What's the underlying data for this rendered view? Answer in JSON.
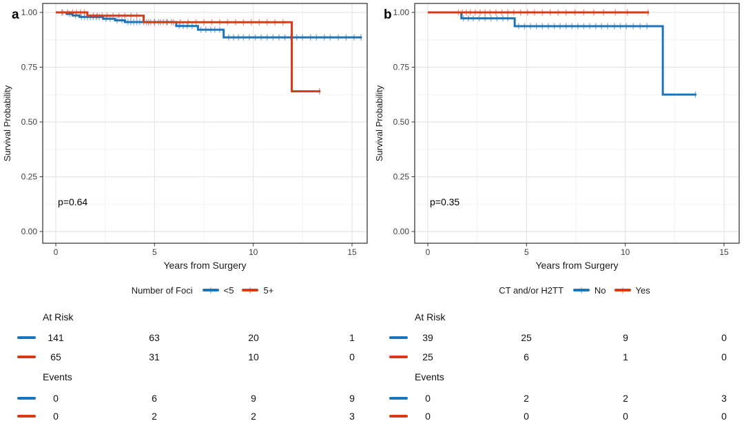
{
  "colors": {
    "blue": "#1F74B8",
    "red": "#D93A16",
    "grid_major": "#E4E4E4",
    "grid_minor": "#F2F2F2",
    "panel_border": "#3A3A3A",
    "tick_text": "#404040"
  },
  "chart_data": [
    {
      "type": "line",
      "subtype": "kaplan-meier-step",
      "panel_label": "a",
      "xlabel": "Years from Surgery",
      "ylabel": "Survival Probability",
      "xticks": [
        0,
        5,
        10,
        15
      ],
      "x_minor": [
        2.5,
        7.5,
        12.5
      ],
      "yticks": [
        0.0,
        0.25,
        0.5,
        0.75,
        1.0
      ],
      "ytick_labels": [
        "0.00",
        "0.25",
        "0.50",
        "0.75",
        "1.00"
      ],
      "y_minor": [
        0.125,
        0.375,
        0.625,
        0.875
      ],
      "xlim": [
        -0.65,
        15.8
      ],
      "ylim": [
        -0.055,
        1.04
      ],
      "grid": true,
      "legend_position": "bottom",
      "p_value": "p=0.64",
      "legend": {
        "title": "Number of Foci",
        "entries": [
          {
            "label": "<5",
            "color": "#1F74B8"
          },
          {
            "label": "5+",
            "color": "#D93A16"
          }
        ]
      },
      "series": [
        {
          "name": "<5",
          "color": "#1F74B8",
          "steps": [
            [
              0,
              1.0
            ],
            [
              0.55,
              0.993
            ],
            [
              0.85,
              0.986
            ],
            [
              1.2,
              0.979
            ],
            [
              2.4,
              0.971
            ],
            [
              3.0,
              0.964
            ],
            [
              3.5,
              0.956
            ],
            [
              6.1,
              0.938
            ],
            [
              7.2,
              0.921
            ],
            [
              8.5,
              0.886
            ]
          ],
          "end_x": 15.5,
          "censors": [
            0.3,
            0.7,
            1.0,
            1.3,
            1.45,
            1.6,
            1.75,
            1.9,
            2.05,
            2.2,
            2.55,
            2.75,
            3.1,
            3.35,
            3.65,
            3.8,
            3.95,
            4.1,
            4.25,
            4.45,
            4.6,
            4.8,
            5.0,
            5.2,
            5.45,
            5.65,
            5.85,
            6.25,
            6.45,
            6.65,
            6.9,
            7.35,
            7.6,
            7.85,
            8.05,
            8.3,
            8.75,
            9.0,
            9.25,
            9.5,
            9.8,
            10.1,
            10.4,
            10.7,
            11.0,
            11.3,
            11.6,
            11.9,
            12.2,
            12.5,
            12.9,
            13.2,
            13.6,
            13.9,
            14.3,
            14.7,
            15.1,
            15.45
          ]
        },
        {
          "name": "5+",
          "color": "#D93A16",
          "steps": [
            [
              0,
              1.0
            ],
            [
              1.6,
              0.985
            ],
            [
              4.45,
              0.955
            ],
            [
              11.95,
              0.64
            ]
          ],
          "end_x": 13.4,
          "censors": [
            0.35,
            0.6,
            0.85,
            1.05,
            1.25,
            1.45,
            1.9,
            2.1,
            2.35,
            2.6,
            2.9,
            3.2,
            3.5,
            3.8,
            4.1,
            4.7,
            5.0,
            5.3,
            5.6,
            5.95,
            6.3,
            6.7,
            7.1,
            7.5,
            7.9,
            8.3,
            8.7,
            9.1,
            9.5,
            9.9,
            10.3,
            10.7,
            11.1,
            11.5,
            13.35
          ]
        }
      ],
      "risk_table": {
        "columns": [
          0,
          5,
          10,
          15
        ],
        "sections": [
          {
            "label": "At Risk",
            "rows": [
              {
                "group": "<5",
                "color": "#1F74B8",
                "values": [
                  "141",
                  "63",
                  "20",
                  "1"
                ]
              },
              {
                "group": "5+",
                "color": "#D93A16",
                "values": [
                  "65",
                  "31",
                  "10",
                  "0"
                ]
              }
            ]
          },
          {
            "label": "Events",
            "rows": [
              {
                "group": "<5",
                "color": "#1F74B8",
                "values": [
                  "0",
                  "6",
                  "9",
                  "9"
                ]
              },
              {
                "group": "5+",
                "color": "#D93A16",
                "values": [
                  "0",
                  "2",
                  "2",
                  "3"
                ]
              }
            ]
          }
        ]
      }
    },
    {
      "type": "line",
      "subtype": "kaplan-meier-step",
      "panel_label": "b",
      "xlabel": "Years from Surgery",
      "ylabel": "Survival Probability",
      "xticks": [
        0,
        5,
        10,
        15
      ],
      "x_minor": [
        2.5,
        7.5,
        12.5
      ],
      "yticks": [
        0.0,
        0.25,
        0.5,
        0.75,
        1.0
      ],
      "ytick_labels": [
        "0.00",
        "0.25",
        "0.50",
        "0.75",
        "1.00"
      ],
      "y_minor": [
        0.125,
        0.375,
        0.625,
        0.875
      ],
      "xlim": [
        -0.65,
        15.8
      ],
      "ylim": [
        -0.055,
        1.04
      ],
      "grid": true,
      "legend_position": "bottom",
      "p_value": "p=0.35",
      "legend": {
        "title": "CT and/or H2TT",
        "entries": [
          {
            "label": "No",
            "color": "#1F74B8"
          },
          {
            "label": "Yes",
            "color": "#D93A16"
          }
        ]
      },
      "series": [
        {
          "name": "No",
          "color": "#1F74B8",
          "steps": [
            [
              0,
              1.0
            ],
            [
              1.7,
              0.973
            ],
            [
              4.4,
              0.937
            ],
            [
              11.9,
              0.625
            ]
          ],
          "end_x": 13.6,
          "censors": [
            1.8,
            2.05,
            2.3,
            2.6,
            2.9,
            3.2,
            3.5,
            3.8,
            4.05,
            4.6,
            4.9,
            5.2,
            5.5,
            5.8,
            6.1,
            6.4,
            6.7,
            7.0,
            7.3,
            7.6,
            7.9,
            8.2,
            8.5,
            8.8,
            9.1,
            9.45,
            9.75,
            10.05,
            10.4,
            10.75,
            11.1,
            13.55
          ]
        },
        {
          "name": "Yes",
          "color": "#D93A16",
          "steps": [
            [
              0,
              1.0
            ]
          ],
          "end_x": 11.2,
          "censors": [
            1.55,
            1.75,
            1.95,
            2.15,
            2.4,
            2.65,
            2.9,
            3.15,
            3.45,
            3.75,
            4.05,
            4.35,
            4.7,
            5.05,
            5.4,
            5.8,
            6.2,
            6.6,
            7.0,
            7.45,
            7.9,
            8.4,
            8.9,
            9.5,
            10.1,
            11.15
          ]
        }
      ],
      "risk_table": {
        "columns": [
          0,
          5,
          10,
          15
        ],
        "sections": [
          {
            "label": "At Risk",
            "rows": [
              {
                "group": "No",
                "color": "#1F74B8",
                "values": [
                  "39",
                  "25",
                  "9",
                  "0"
                ]
              },
              {
                "group": "Yes",
                "color": "#D93A16",
                "values": [
                  "25",
                  "6",
                  "1",
                  "0"
                ]
              }
            ]
          },
          {
            "label": "Events",
            "rows": [
              {
                "group": "No",
                "color": "#1F74B8",
                "values": [
                  "0",
                  "2",
                  "2",
                  "3"
                ]
              },
              {
                "group": "Yes",
                "color": "#D93A16",
                "values": [
                  "0",
                  "0",
                  "0",
                  "0"
                ]
              }
            ]
          }
        ]
      }
    }
  ]
}
